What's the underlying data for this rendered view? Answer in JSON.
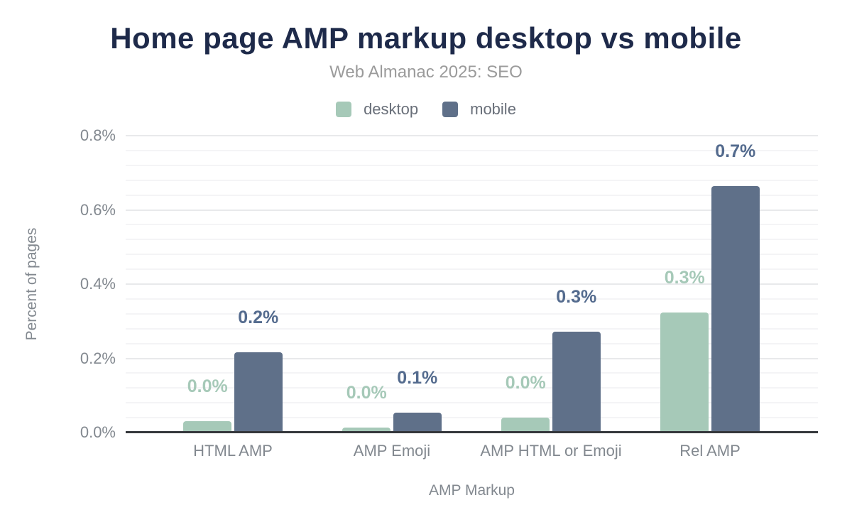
{
  "chart_data": {
    "type": "bar",
    "title": "Home page AMP markup desktop vs mobile",
    "subtitle": "Web Almanac 2025: SEO",
    "xlabel": "AMP Markup",
    "ylabel": "Percent of pages",
    "categories": [
      "HTML AMP",
      "AMP Emoji",
      "AMP HTML or Emoji",
      "Rel AMP"
    ],
    "series": [
      {
        "name": "desktop",
        "color": "#a6c9b8",
        "label_color": "#a6c9b8",
        "values": [
          0.031,
          0.013,
          0.04,
          0.323
        ],
        "labels": [
          "0.0%",
          "0.0%",
          "0.0%",
          "0.3%"
        ]
      },
      {
        "name": "mobile",
        "color": "#5f7089",
        "label_color": "#546b8e",
        "values": [
          0.216,
          0.054,
          0.272,
          0.664
        ],
        "labels": [
          "0.2%",
          "0.1%",
          "0.3%",
          "0.7%"
        ]
      }
    ],
    "y_ticks": [
      "0.0%",
      "0.2%",
      "0.4%",
      "0.6%",
      "0.8%"
    ],
    "ylim": [
      0,
      0.8
    ],
    "y_major_step": 0.2,
    "y_minor_step": 0.04,
    "grid": true,
    "legend_position": "top",
    "title_color": "#1e2a4a",
    "axis_line_color": "#35383c"
  }
}
